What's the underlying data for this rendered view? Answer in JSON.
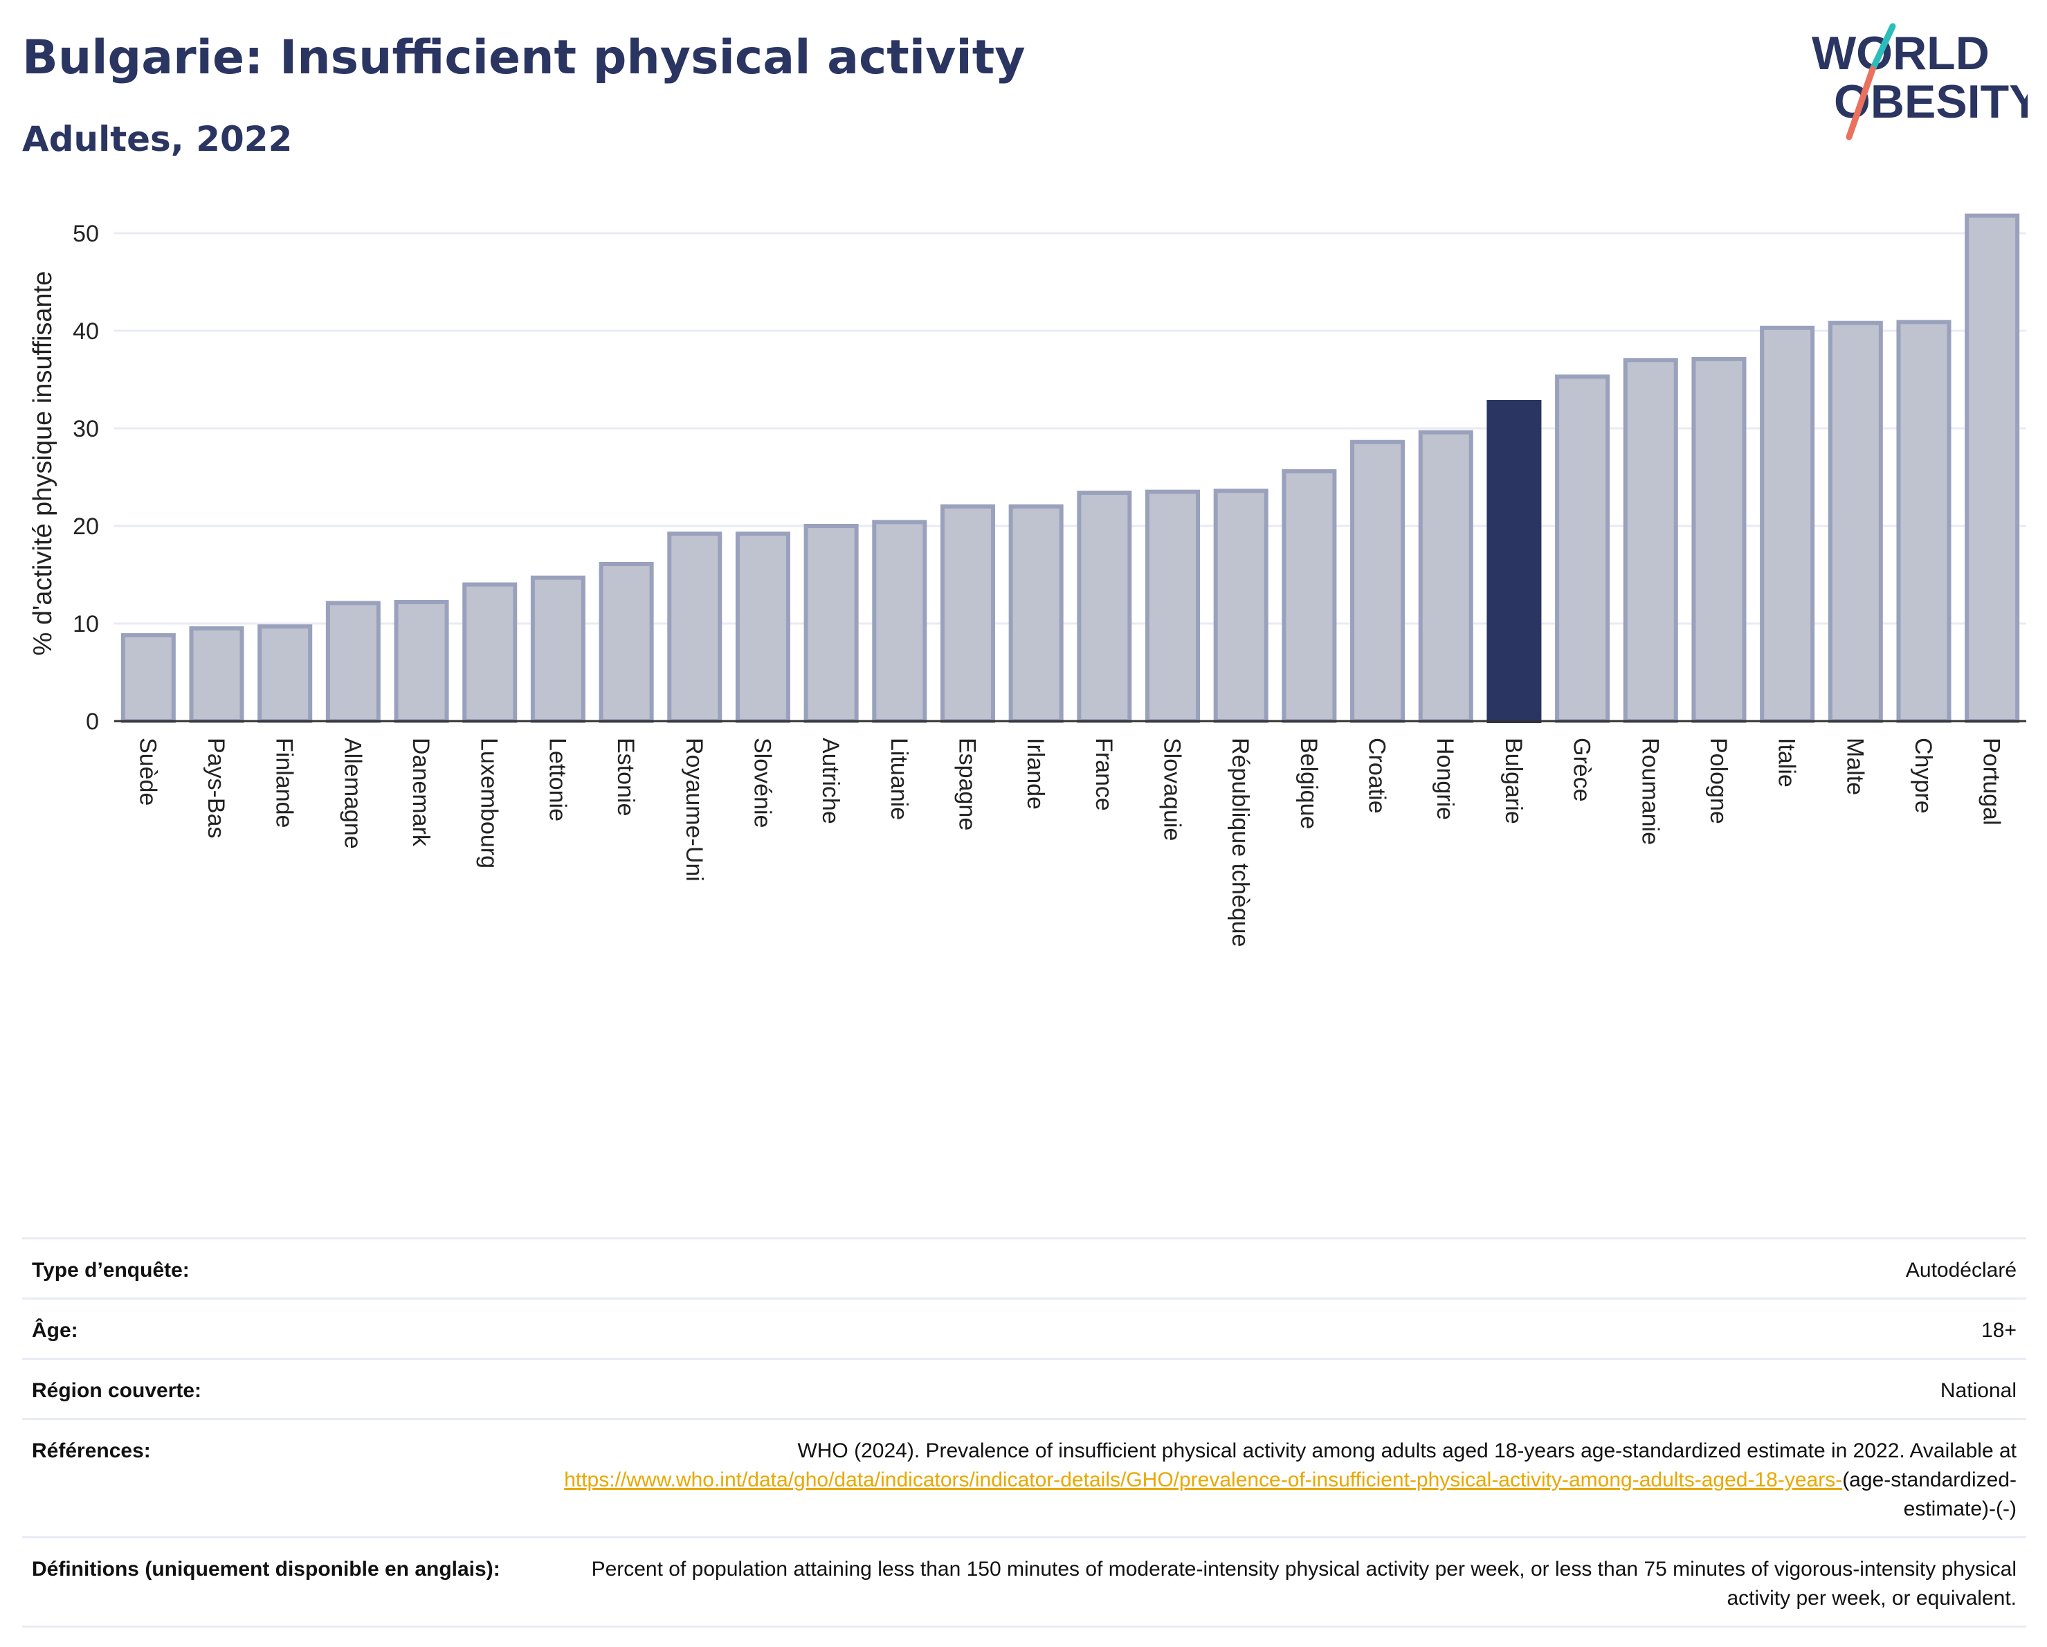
{
  "header": {
    "title": "Bulgarie: Insufficient physical activity",
    "subtitle": "Adultes, 2022"
  },
  "logo": {
    "line1": "WORLD",
    "line2": "OBESITY"
  },
  "colors": {
    "bar_fill": "#bfc2cf",
    "bar_stroke": "#9aa1bc",
    "highlight": "#2b3562",
    "grid": "#e8ebf4",
    "title": "#2b3562",
    "link": "#e8a800",
    "logo_teal": "#2bbcbc",
    "logo_coral": "#e9715e"
  },
  "chart_data": {
    "type": "bar",
    "ylabel": "% d'activité physique insuffisante",
    "ylim": [
      0,
      53
    ],
    "yticks": [
      0,
      10,
      20,
      30,
      40,
      50
    ],
    "grid": true,
    "highlight": "Bulgarie",
    "categories": [
      "Suède",
      "Pays-Bas",
      "Finlande",
      "Allemagne",
      "Danemark",
      "Luxembourg",
      "Lettonie",
      "Estonie",
      "Royaume-Uni",
      "Slovénie",
      "Autriche",
      "Lituanie",
      "Espagne",
      "Irlande",
      "France",
      "Slovaquie",
      "République tchèque",
      "Belgique",
      "Croatie",
      "Hongrie",
      "Bulgarie",
      "Grèce",
      "Roumanie",
      "Pologne",
      "Italie",
      "Malte",
      "Chypre",
      "Portugal"
    ],
    "values": [
      8.8,
      9.5,
      9.7,
      12.1,
      12.2,
      14.0,
      14.7,
      16.1,
      19.2,
      19.2,
      20.0,
      20.4,
      22.0,
      22.0,
      23.4,
      23.5,
      23.6,
      25.6,
      28.6,
      29.6,
      32.7,
      35.3,
      37.0,
      37.1,
      40.3,
      40.8,
      40.9,
      51.8
    ]
  },
  "info": {
    "survey_type": {
      "label": "Type d’enquête:",
      "value": "Autodéclaré"
    },
    "age": {
      "label": "Âge:",
      "value": "18+"
    },
    "region": {
      "label": "Région couverte:",
      "value": "National"
    },
    "references": {
      "label": "Références:",
      "text": "WHO (2024). Prevalence of insufficient physical activity among adults aged 18-years age-standardized estimate in 2022. Available at",
      "link": "https://www.who.int/data/gho/data/indicators/indicator-details/GHO/prevalence-of-insufficient-physical-activity-among-adults-aged-18-years-",
      "suffix": "(age-standardized-estimate)-(-)"
    },
    "definitions": {
      "label": "Définitions (uniquement disponible en anglais):",
      "value": "Percent of population attaining less than 150 minutes of moderate-intensity physical activity per week, or less than 75 minutes of vigorous-intensity physical activity per week, or equivalent."
    }
  }
}
